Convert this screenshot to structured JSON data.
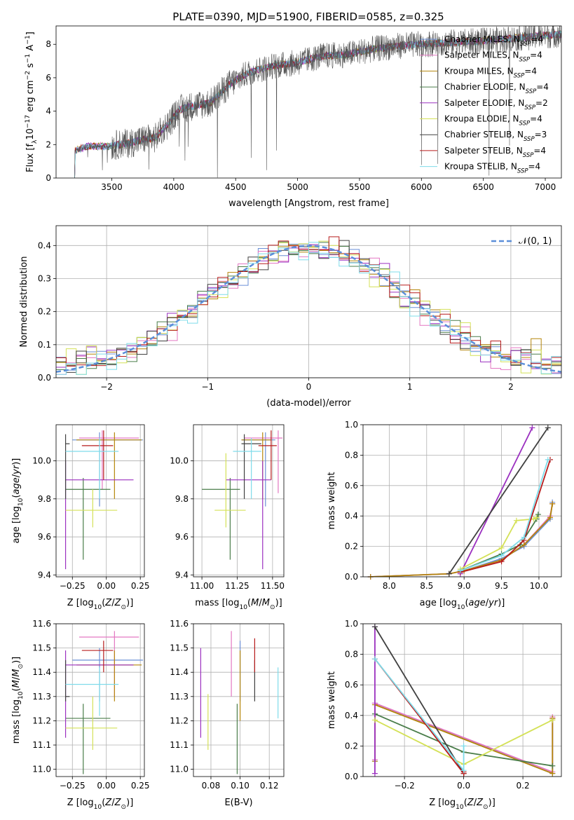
{
  "page_title": "PLATE=0390, MJD=51900, FIBERID=0585, z=0.325",
  "palette": [
    "#6a8fd6",
    "#e377c2",
    "#b5860b",
    "#4a7d4a",
    "#9b30c0",
    "#d4e157",
    "#404040",
    "#b71c1c",
    "#7fdcea"
  ],
  "chart_data": [
    {
      "id": "spectrum",
      "type": "line",
      "title": "PLATE=0390, MJD=51900, FIBERID=0585, z=0.325",
      "xlabel": "wavelength [Angstrom, rest frame]",
      "ylabel": "Flux [f",
      "xlim": [
        3050,
        7130
      ],
      "ylim": [
        0,
        9.1
      ],
      "xticks": [
        3500,
        4000,
        4500,
        5000,
        5500,
        6000,
        6500,
        7000
      ],
      "yticks": [
        0,
        2,
        4,
        6,
        8
      ],
      "xtick_labels": [
        "3500",
        "4000",
        "4500",
        "5000",
        "5500",
        "6000",
        "6500",
        "7000"
      ],
      "ytick_labels": [
        "0",
        "2",
        "4",
        "6",
        "8"
      ],
      "grid": false,
      "legend": "upper-right",
      "continuum": [
        [
          3200,
          1.6
        ],
        [
          3300,
          1.9
        ],
        [
          3450,
          1.9
        ],
        [
          3550,
          2.0
        ],
        [
          3650,
          2.1
        ],
        [
          3750,
          2.3
        ],
        [
          3850,
          2.4
        ],
        [
          3950,
          3.2
        ],
        [
          4050,
          4.1
        ],
        [
          4150,
          4.3
        ],
        [
          4300,
          4.5
        ],
        [
          4450,
          5.6
        ],
        [
          4600,
          6.3
        ],
        [
          4800,
          6.7
        ],
        [
          5000,
          6.9
        ],
        [
          5200,
          7.3
        ],
        [
          5400,
          7.4
        ],
        [
          5600,
          7.7
        ],
        [
          5800,
          7.9
        ],
        [
          6000,
          8.0
        ],
        [
          6200,
          8.1
        ],
        [
          6500,
          8.2
        ],
        [
          6800,
          8.4
        ],
        [
          7130,
          8.6
        ]
      ],
      "series": [
        {
          "name": "Chabrier MILES, N",
          "nssp": "=4"
        },
        {
          "name": "Salpeter MILES, N",
          "nssp": "=4"
        },
        {
          "name": "Kroupa MILES, N",
          "nssp": "=4"
        },
        {
          "name": "Chabrier ELODIE, N",
          "nssp": "=4"
        },
        {
          "name": "Salpeter ELODIE, N",
          "nssp": "=2"
        },
        {
          "name": "Kroupa ELODIE, N",
          "nssp": "=4"
        },
        {
          "name": "Chabrier STELIB, N",
          "nssp": "=3"
        },
        {
          "name": "Salpeter STELIB, N",
          "nssp": "=4"
        },
        {
          "name": "Kroupa STELIB, N",
          "nssp": "=4"
        }
      ]
    },
    {
      "id": "residuals",
      "type": "histogram",
      "xlabel": "(data-model)/error",
      "ylabel": "Normed distribution",
      "xlim": [
        -2.5,
        2.5
      ],
      "ylim": [
        0,
        0.46
      ],
      "xticks": [
        -2,
        -1,
        0,
        1,
        2
      ],
      "yticks": [
        0.0,
        0.1,
        0.2,
        0.3,
        0.4
      ],
      "xtick_labels": [
        "−2",
        "−1",
        "0",
        "1",
        "2"
      ],
      "ytick_labels": [
        "0.0",
        "0.1",
        "0.2",
        "0.3",
        "0.4"
      ],
      "grid": true,
      "legend": "upper-right",
      "reference_curve": {
        "label": "𝒩(0, 1)",
        "mean": 0,
        "sigma": 1,
        "color": "#5b8fd9"
      },
      "bin_width": 0.1
    },
    {
      "id": "age-vs-Z",
      "type": "errorbar",
      "xlabel": "Z [log",
      "ylabel": "age  [log",
      "xlim": [
        -0.37,
        0.28
      ],
      "ylim": [
        9.39,
        10.19
      ],
      "xticks": [
        -0.25,
        0.0,
        0.25
      ],
      "yticks": [
        9.4,
        9.6,
        9.8,
        10.0
      ],
      "xtick_labels": [
        "−0.25",
        "0.00",
        "0.25"
      ],
      "ytick_labels": [
        "9.4",
        "9.6",
        "9.8",
        "10.0"
      ],
      "grid": true,
      "points": [
        {
          "s": 0,
          "x": -0.05,
          "y": 10.11,
          "xe": [
            -0.25,
            0.27
          ],
          "ye": [
            9.76,
            10.15
          ]
        },
        {
          "s": 1,
          "x": -0.03,
          "y": 10.12,
          "xe": [
            -0.2,
            0.24
          ],
          "ye": [
            9.85,
            10.16
          ]
        },
        {
          "s": 2,
          "x": 0.06,
          "y": 10.11,
          "xe": [
            -0.22,
            0.26
          ],
          "ye": [
            9.8,
            10.15
          ]
        },
        {
          "s": 3,
          "x": -0.17,
          "y": 9.85,
          "xe": [
            -0.3,
            0.03
          ],
          "ye": [
            9.48,
            9.91
          ]
        },
        {
          "s": 4,
          "x": -0.3,
          "y": 9.9,
          "xe": [
            -0.3,
            0.2
          ],
          "ye": [
            9.43,
            10.0
          ]
        },
        {
          "s": 5,
          "x": -0.1,
          "y": 9.74,
          "xe": [
            -0.3,
            0.08
          ],
          "ye": [
            9.65,
            9.85
          ]
        },
        {
          "s": 6,
          "x": -0.3,
          "y": 10.09,
          "xe": [
            -0.3,
            -0.27
          ],
          "ye": [
            9.8,
            10.14
          ]
        },
        {
          "s": 7,
          "x": -0.02,
          "y": 10.08,
          "xe": [
            -0.18,
            0.05
          ],
          "ye": [
            9.9,
            10.16
          ]
        },
        {
          "s": 8,
          "x": -0.05,
          "y": 10.05,
          "xe": [
            -0.3,
            0.09
          ],
          "ye": [
            9.8,
            10.12
          ]
        }
      ]
    },
    {
      "id": "age-vs-mass",
      "type": "errorbar",
      "xlabel": "mass [log",
      "ylabel": "",
      "xlim": [
        10.94,
        11.58
      ],
      "ylim": [
        9.39,
        10.19
      ],
      "xticks": [
        11.0,
        11.25,
        11.5
      ],
      "yticks": [
        9.4,
        9.6,
        9.8,
        10.0
      ],
      "xtick_labels": [
        "11.00",
        "11.25",
        "11.50"
      ],
      "ytick_labels": [
        "9.4",
        "9.6",
        "9.8",
        "10.0"
      ],
      "grid": true,
      "points": [
        {
          "s": 0,
          "x": 11.45,
          "y": 10.11,
          "xe": [
            11.28,
            11.52
          ],
          "ye": [
            9.76,
            10.15
          ]
        },
        {
          "s": 1,
          "x": 11.54,
          "y": 10.12,
          "xe": [
            11.3,
            11.57
          ],
          "ye": [
            9.83,
            10.16
          ]
        },
        {
          "s": 2,
          "x": 11.43,
          "y": 10.11,
          "xe": [
            11.28,
            11.49
          ],
          "ye": [
            9.8,
            10.15
          ]
        },
        {
          "s": 3,
          "x": 11.2,
          "y": 9.85,
          "xe": [
            11.0,
            11.27
          ],
          "ye": [
            9.48,
            9.91
          ]
        },
        {
          "s": 4,
          "x": 11.43,
          "y": 9.9,
          "xe": [
            11.17,
            11.49
          ],
          "ye": [
            9.43,
            10.0
          ]
        },
        {
          "s": 5,
          "x": 11.17,
          "y": 9.74,
          "xe": [
            11.09,
            11.31
          ],
          "ye": [
            9.65,
            10.04
          ]
        },
        {
          "s": 6,
          "x": 11.3,
          "y": 10.09,
          "xe": [
            11.28,
            11.42
          ],
          "ye": [
            9.8,
            10.14
          ]
        },
        {
          "s": 7,
          "x": 11.49,
          "y": 10.08,
          "xe": [
            11.4,
            11.53
          ],
          "ye": [
            9.9,
            10.16
          ]
        },
        {
          "s": 8,
          "x": 11.35,
          "y": 10.05,
          "xe": [
            11.22,
            11.42
          ],
          "ye": [
            9.8,
            10.12
          ]
        }
      ]
    },
    {
      "id": "weight-vs-age",
      "type": "line",
      "xlabel": "age  [log",
      "ylabel": "mass weight",
      "xlim": [
        7.65,
        10.3
      ],
      "ylim": [
        0,
        1.0
      ],
      "xticks": [
        8.0,
        8.5,
        9.0,
        9.5,
        10.0
      ],
      "yticks": [
        0.0,
        0.2,
        0.4,
        0.6,
        0.8,
        1.0
      ],
      "xtick_labels": [
        "8.0",
        "8.5",
        "9.0",
        "9.5",
        "10.0"
      ],
      "ytick_labels": [
        "0.0",
        "0.2",
        "0.4",
        "0.6",
        "0.8",
        "1.0"
      ],
      "grid": true,
      "series": [
        {
          "s": 0,
          "x": [
            7.75,
            8.8,
            9.0,
            9.5,
            9.8,
            10.15,
            10.18
          ],
          "y": [
            0.0,
            0.02,
            0.04,
            0.12,
            0.2,
            0.38,
            0.49
          ]
        },
        {
          "s": 1,
          "x": [
            7.75,
            8.8,
            9.0,
            9.5,
            9.8,
            10.15,
            10.18
          ],
          "y": [
            0.0,
            0.02,
            0.04,
            0.11,
            0.21,
            0.4,
            0.48
          ]
        },
        {
          "s": 2,
          "x": [
            7.75,
            8.8,
            9.0,
            9.5,
            9.8,
            10.15,
            10.18
          ],
          "y": [
            0.0,
            0.02,
            0.04,
            0.11,
            0.21,
            0.39,
            0.48
          ]
        },
        {
          "s": 3,
          "x": [
            8.95,
            9.5,
            9.75,
            9.97,
            9.99
          ],
          "y": [
            0.04,
            0.15,
            0.21,
            0.38,
            0.41
          ]
        },
        {
          "s": 4,
          "x": [
            8.95,
            9.91
          ],
          "y": [
            0.02,
            0.98
          ]
        },
        {
          "s": 5,
          "x": [
            8.95,
            9.5,
            9.7,
            9.93,
            9.97
          ],
          "y": [
            0.05,
            0.19,
            0.37,
            0.38,
            0.39
          ]
        },
        {
          "s": 6,
          "x": [
            8.8,
            10.12
          ],
          "y": [
            0.02,
            0.98
          ]
        },
        {
          "s": 7,
          "x": [
            8.95,
            9.5,
            9.8,
            10.15
          ],
          "y": [
            0.03,
            0.1,
            0.24,
            0.77
          ]
        },
        {
          "s": 8,
          "x": [
            8.95,
            9.5,
            9.8,
            10.12
          ],
          "y": [
            0.04,
            0.14,
            0.26,
            0.77
          ]
        }
      ]
    },
    {
      "id": "mass-vs-Z",
      "type": "errorbar",
      "xlabel": "Z [log",
      "ylabel": "mass [log",
      "xlim": [
        -0.37,
        0.28
      ],
      "ylim": [
        10.97,
        11.6
      ],
      "xticks": [
        -0.25,
        0.0,
        0.25
      ],
      "yticks": [
        11.0,
        11.1,
        11.2,
        11.3,
        11.4,
        11.5,
        11.6
      ],
      "xtick_labels": [
        "−0.25",
        "0.00",
        "0.25"
      ],
      "ytick_labels": [
        "11.0",
        "11.1",
        "11.2",
        "11.3",
        "11.4",
        "11.5",
        "11.6"
      ],
      "grid": true,
      "points": [
        {
          "s": 0,
          "x": -0.05,
          "y": 11.45,
          "xe": [
            -0.25,
            0.27
          ],
          "ye": [
            11.28,
            11.5
          ]
        },
        {
          "s": 1,
          "x": 0.06,
          "y": 11.545,
          "xe": [
            -0.2,
            0.24
          ],
          "ye": [
            11.3,
            11.57
          ]
        },
        {
          "s": 2,
          "x": 0.06,
          "y": 11.43,
          "xe": [
            -0.22,
            0.26
          ],
          "ye": [
            11.28,
            11.49
          ]
        },
        {
          "s": 3,
          "x": -0.17,
          "y": 11.21,
          "xe": [
            -0.3,
            0.03
          ],
          "ye": [
            10.98,
            11.27
          ]
        },
        {
          "s": 4,
          "x": -0.3,
          "y": 11.43,
          "xe": [
            -0.3,
            0.2
          ],
          "ye": [
            11.13,
            11.49
          ]
        },
        {
          "s": 5,
          "x": -0.1,
          "y": 11.17,
          "xe": [
            -0.3,
            0.08
          ],
          "ye": [
            11.08,
            11.3
          ]
        },
        {
          "s": 6,
          "x": -0.3,
          "y": 11.3,
          "xe": [
            -0.3,
            -0.27
          ],
          "ye": [
            11.28,
            11.45
          ]
        },
        {
          "s": 7,
          "x": -0.02,
          "y": 11.49,
          "xe": [
            -0.18,
            0.05
          ],
          "ye": [
            11.4,
            11.53
          ]
        },
        {
          "s": 8,
          "x": -0.05,
          "y": 11.35,
          "xe": [
            -0.3,
            0.09
          ],
          "ye": [
            11.22,
            11.42
          ]
        }
      ]
    },
    {
      "id": "mass-vs-ebv",
      "type": "errorbar",
      "xlabel": "E(B-V)",
      "ylabel": "",
      "xlim": [
        0.068,
        0.13
      ],
      "ylim": [
        10.97,
        11.6
      ],
      "xticks": [
        0.08,
        0.1,
        0.12
      ],
      "yticks": [
        11.0,
        11.1,
        11.2,
        11.3,
        11.4,
        11.5,
        11.6
      ],
      "xtick_labels": [
        "0.08",
        "0.10",
        "0.12"
      ],
      "ytick_labels": [
        "11.0",
        "11.1",
        "11.2",
        "11.3",
        "11.4",
        "11.5",
        "11.6"
      ],
      "grid": true,
      "points": [
        {
          "s": 0,
          "x": 0.1,
          "y": 11.45,
          "xe": [
            0.1,
            0.1
          ],
          "ye": [
            11.28,
            11.53
          ]
        },
        {
          "s": 1,
          "x": 0.094,
          "y": 11.45,
          "xe": [
            0.094,
            0.094
          ],
          "ye": [
            11.3,
            11.57
          ]
        },
        {
          "s": 2,
          "x": 0.1,
          "y": 11.36,
          "xe": [
            0.1,
            0.1
          ],
          "ye": [
            11.2,
            11.49
          ]
        },
        {
          "s": 3,
          "x": 0.098,
          "y": 11.21,
          "xe": [
            0.098,
            0.098
          ],
          "ye": [
            10.98,
            11.27
          ]
        },
        {
          "s": 4,
          "x": 0.073,
          "y": 11.3,
          "xe": [
            0.073,
            0.073
          ],
          "ye": [
            11.13,
            11.5
          ]
        },
        {
          "s": 5,
          "x": 0.078,
          "y": 11.2,
          "xe": [
            0.078,
            0.078
          ],
          "ye": [
            11.08,
            11.31
          ]
        },
        {
          "s": 6,
          "x": 0.11,
          "y": 11.35,
          "xe": [
            0.11,
            0.11
          ],
          "ye": [
            11.28,
            11.45
          ]
        },
        {
          "s": 7,
          "x": 0.11,
          "y": 11.45,
          "xe": [
            0.11,
            0.11
          ],
          "ye": [
            11.4,
            11.54
          ]
        },
        {
          "s": 8,
          "x": 0.126,
          "y": 11.3,
          "xe": [
            0.126,
            0.126
          ],
          "ye": [
            11.21,
            11.42
          ]
        }
      ]
    },
    {
      "id": "weight-vs-Z",
      "type": "line",
      "xlabel": "Z [log",
      "ylabel": "mass weight",
      "xlim": [
        -0.34,
        0.33
      ],
      "ylim": [
        0,
        1.0
      ],
      "xticks": [
        -0.2,
        0.0,
        0.2
      ],
      "yticks": [
        0.0,
        0.2,
        0.4,
        0.6,
        0.8,
        1.0
      ],
      "xtick_labels": [
        "−0.2",
        "0.0",
        "0.2"
      ],
      "ytick_labels": [
        "0.0",
        "0.2",
        "0.4",
        "0.6",
        "0.8",
        "1.0"
      ],
      "grid": true,
      "series": [
        {
          "s": 0,
          "x": [
            -0.3,
            -0.3,
            0.3,
            0.3
          ],
          "y": [
            0.1,
            0.48,
            0.02,
            0.38
          ]
        },
        {
          "s": 1,
          "x": [
            -0.3,
            -0.3,
            0.3,
            0.3
          ],
          "y": [
            0.11,
            0.48,
            0.03,
            0.39
          ]
        },
        {
          "s": 2,
          "x": [
            -0.3,
            -0.3,
            0.3,
            0.3
          ],
          "y": [
            0.1,
            0.47,
            0.02,
            0.38
          ]
        },
        {
          "s": 3,
          "x": [
            -0.3,
            0.0,
            0.3
          ],
          "y": [
            0.41,
            0.16,
            0.07
          ]
        },
        {
          "s": 4,
          "x": [
            -0.3,
            -0.3
          ],
          "y": [
            0.02,
            0.98
          ]
        },
        {
          "s": 5,
          "x": [
            -0.3,
            0.0,
            0.3
          ],
          "y": [
            0.37,
            0.08,
            0.37
          ]
        },
        {
          "s": 6,
          "x": [
            -0.3,
            0.0,
            0.0
          ],
          "y": [
            0.98,
            0.02,
            0.02
          ]
        },
        {
          "s": 7,
          "x": [
            -0.3,
            0.0,
            0.0
          ],
          "y": [
            0.77,
            0.02,
            0.03
          ]
        },
        {
          "s": 8,
          "x": [
            -0.3,
            0.0,
            0.0
          ],
          "y": [
            0.77,
            0.04,
            0.2
          ]
        }
      ]
    }
  ]
}
